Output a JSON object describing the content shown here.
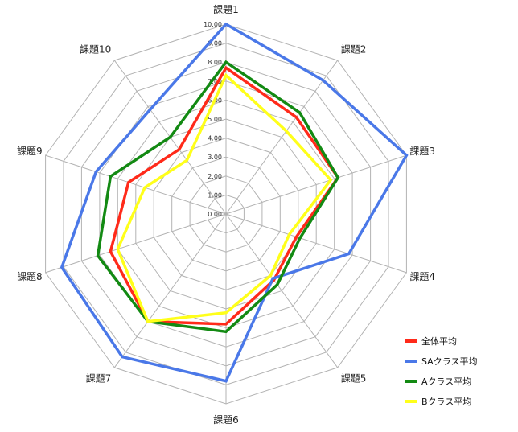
{
  "chart_data": {
    "type": "radar",
    "categories": [
      "課題1",
      "課題2",
      "課題3",
      "課題4",
      "課題5",
      "課題6",
      "課題7",
      "課題8",
      "課題9",
      "課題10"
    ],
    "rlim": [
      0,
      10
    ],
    "ticks": [
      "0.00",
      "1.00",
      "2.00",
      "3.00",
      "4.00",
      "5.00",
      "6.00",
      "7.00",
      "8.00",
      "9.00",
      "10.00"
    ],
    "grid": true,
    "legend_position": "bottom-right",
    "series": [
      {
        "name": "全体平均",
        "color": "#ff2a1a",
        "values": [
          7.7,
          6.3,
          6.2,
          3.9,
          4.3,
          5.8,
          7.0,
          6.4,
          5.4,
          4.2
        ]
      },
      {
        "name": "SAクラス平均",
        "color": "#4a78e8",
        "values": [
          10.0,
          8.7,
          10.0,
          6.8,
          4.2,
          8.8,
          9.3,
          9.1,
          7.2,
          6.8
        ]
      },
      {
        "name": "Aクラス平均",
        "color": "#138a13",
        "values": [
          8.0,
          6.6,
          6.2,
          4.1,
          4.6,
          6.2,
          7.0,
          7.1,
          6.4,
          5.0
        ]
      },
      {
        "name": "Bクラス平均",
        "color": "#ffff1a",
        "values": [
          7.3,
          5.4,
          5.8,
          3.5,
          4.0,
          5.2,
          7.0,
          6.0,
          4.5,
          3.5
        ]
      }
    ]
  }
}
